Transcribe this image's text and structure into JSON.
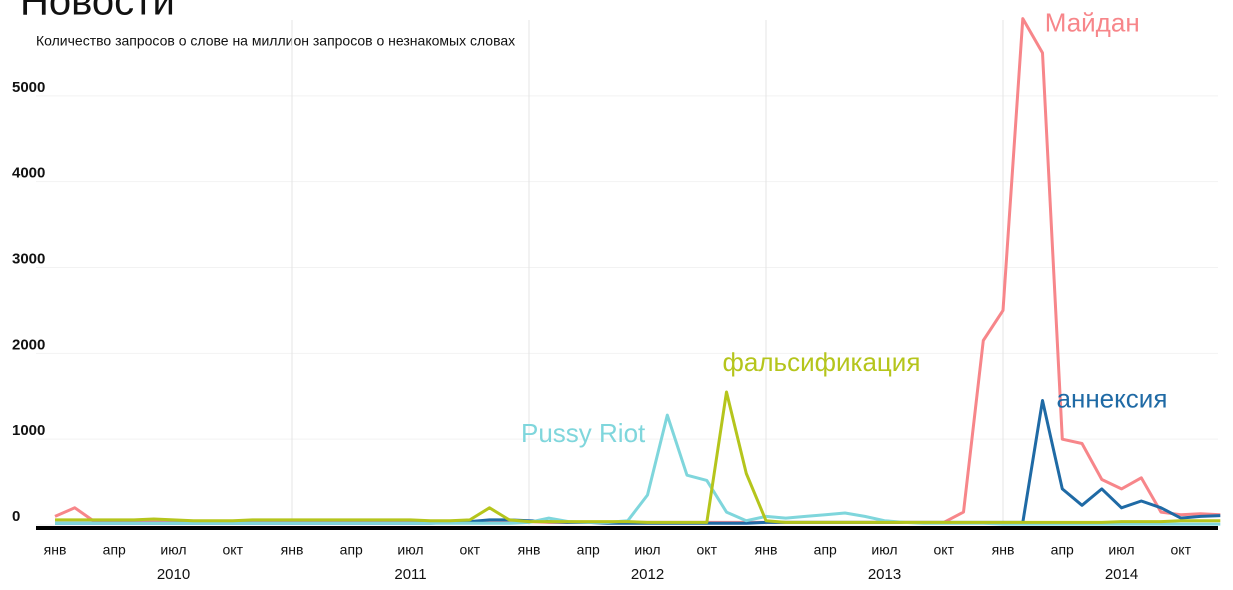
{
  "chart_data": {
    "type": "line",
    "title": "Новости",
    "subtitle": "Количество запросов о слове на миллион запросов о незнакомых словах",
    "categories": [
      "янв",
      null,
      null,
      "апр",
      null,
      null,
      "июл",
      null,
      null,
      "окт",
      null,
      null,
      "янв",
      null,
      null,
      "апр",
      null,
      null,
      "июл",
      null,
      null,
      "окт",
      null,
      null,
      "янв",
      null,
      null,
      "апр",
      null,
      null,
      "июл",
      null,
      null,
      "окт",
      null,
      null,
      "янв",
      null,
      null,
      "апр",
      null,
      null,
      "июл",
      null,
      null,
      "окт",
      null,
      null,
      "янв",
      null,
      null,
      "апр",
      null,
      null,
      "июл",
      null,
      null,
      "окт",
      null,
      null
    ],
    "years": [
      "2010",
      "2011",
      "2012",
      "2013",
      "2014"
    ],
    "ylim": [
      0,
      6000
    ],
    "yticks": [
      0,
      1000,
      2000,
      3000,
      4000,
      5000
    ],
    "grid": true,
    "series": [
      {
        "name": "Майдан",
        "color": "#f7868a",
        "values": [
          100,
          200,
          40,
          40,
          40,
          40,
          40,
          30,
          30,
          40,
          40,
          40,
          40,
          40,
          40,
          40,
          40,
          40,
          40,
          40,
          40,
          40,
          40,
          40,
          40,
          30,
          30,
          30,
          30,
          30,
          30,
          30,
          30,
          30,
          30,
          30,
          30,
          30,
          30,
          30,
          30,
          30,
          30,
          30,
          30,
          30,
          150,
          2150,
          2500,
          5900,
          5500,
          1000,
          950,
          530,
          420,
          550,
          150,
          120,
          130,
          120
        ]
      },
      {
        "name": "аннексия",
        "color": "#1f6aa5",
        "values": [
          20,
          20,
          20,
          20,
          20,
          20,
          20,
          20,
          20,
          20,
          20,
          20,
          20,
          20,
          20,
          20,
          20,
          20,
          20,
          20,
          30,
          40,
          60,
          60,
          50,
          40,
          30,
          30,
          20,
          20,
          20,
          20,
          20,
          20,
          20,
          20,
          30,
          30,
          30,
          30,
          30,
          30,
          30,
          30,
          30,
          30,
          30,
          30,
          30,
          30,
          1450,
          420,
          230,
          420,
          200,
          280,
          200,
          80,
          100,
          110
        ]
      },
      {
        "name": "Pussy Riot",
        "color": "#7fd6dc",
        "values": [
          20,
          20,
          20,
          20,
          20,
          20,
          20,
          20,
          20,
          20,
          20,
          20,
          20,
          20,
          20,
          20,
          20,
          20,
          20,
          20,
          20,
          20,
          20,
          20,
          30,
          80,
          40,
          30,
          30,
          50,
          350,
          1280,
          580,
          520,
          150,
          50,
          100,
          80,
          100,
          120,
          140,
          100,
          50,
          30,
          20,
          20,
          20,
          20,
          10,
          10,
          10,
          10,
          10,
          10,
          10,
          10,
          10,
          10,
          10,
          10
        ]
      },
      {
        "name": "фальсификация",
        "color": "#b5c51c",
        "values": [
          60,
          60,
          60,
          60,
          60,
          70,
          60,
          50,
          50,
          50,
          60,
          60,
          60,
          60,
          60,
          60,
          60,
          60,
          60,
          50,
          50,
          60,
          200,
          60,
          40,
          40,
          40,
          40,
          40,
          40,
          30,
          30,
          30,
          30,
          1550,
          600,
          50,
          30,
          30,
          30,
          30,
          30,
          30,
          30,
          30,
          30,
          30,
          30,
          30,
          30,
          30,
          30,
          30,
          30,
          40,
          40,
          40,
          50,
          50,
          50
        ]
      }
    ]
  }
}
